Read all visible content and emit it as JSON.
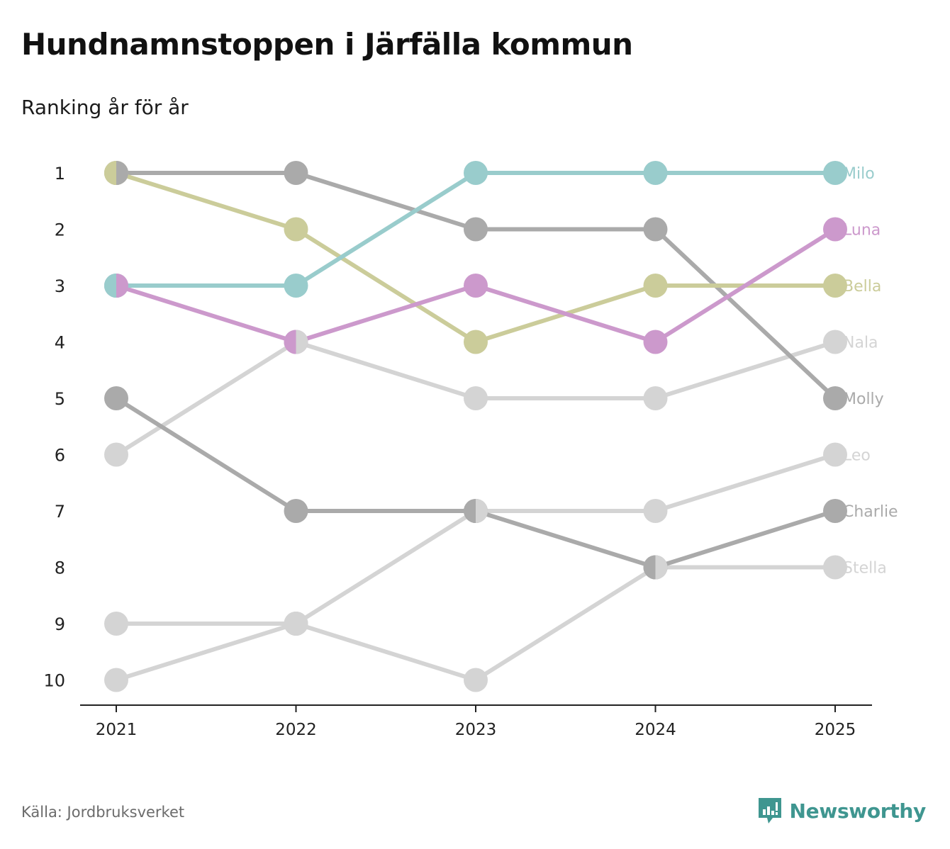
{
  "header": {
    "title": "Hundnamnstoppen i Järfälla kommun",
    "subtitle": "Ranking år för år"
  },
  "footer": {
    "source": "Källa: Jordbruksverket",
    "brand": "Newsworthy",
    "brand_color": "#3f9690"
  },
  "chart_data": {
    "type": "line",
    "title": "Hundnamnstoppen i Järfälla kommun",
    "subtitle": "Ranking år för år",
    "xlabel": "",
    "ylabel": "",
    "x": [
      "2021",
      "2022",
      "2023",
      "2024",
      "2025"
    ],
    "y_ticks": [
      "1",
      "2",
      "3",
      "4",
      "5",
      "6",
      "7",
      "8",
      "9",
      "10"
    ],
    "ylim": [
      1,
      10
    ],
    "y_inverted": true,
    "series": [
      {
        "name": "Nala",
        "color": "#d4d4d4",
        "values": [
          6,
          4,
          5,
          5,
          4
        ]
      },
      {
        "name": "Leo",
        "color": "#d4d4d4",
        "values": [
          10,
          9,
          7,
          7,
          6
        ]
      },
      {
        "name": "Stella",
        "color": "#d4d4d4",
        "values": [
          9,
          9,
          10,
          8,
          8
        ]
      },
      {
        "name": "Charlie",
        "color": "#aaaaaa",
        "values": [
          5,
          7,
          7,
          8,
          7
        ]
      },
      {
        "name": "Molly",
        "color": "#aaaaaa",
        "values": [
          1,
          1,
          2,
          2,
          5
        ]
      },
      {
        "name": "Bella",
        "color": "#cbcc9a",
        "values": [
          1,
          2,
          4,
          3,
          3
        ]
      },
      {
        "name": "Luna",
        "color": "#cc99cc",
        "values": [
          3,
          4,
          3,
          4,
          2
        ]
      },
      {
        "name": "Milo",
        "color": "#99cccc",
        "values": [
          3,
          3,
          1,
          1,
          1
        ]
      }
    ]
  }
}
